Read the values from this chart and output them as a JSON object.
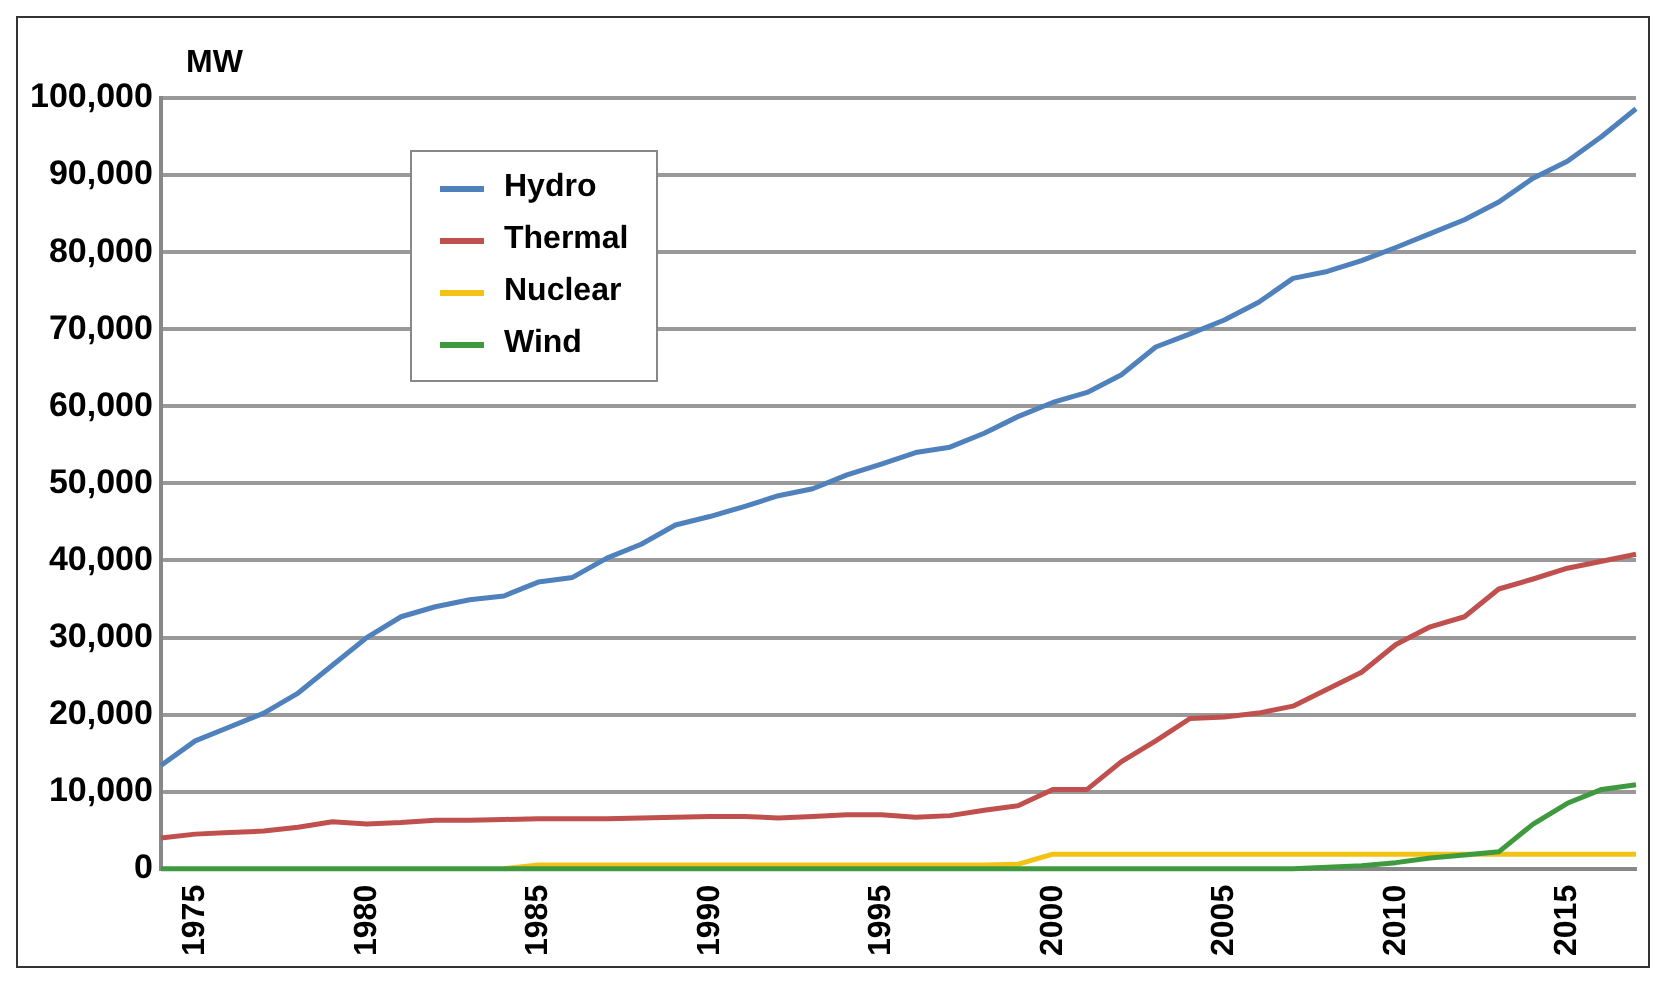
{
  "chart_data": {
    "type": "line",
    "ylabel": "MW",
    "x": [
      1974,
      1975,
      1976,
      1977,
      1978,
      1979,
      1980,
      1981,
      1982,
      1983,
      1984,
      1985,
      1986,
      1987,
      1988,
      1989,
      1990,
      1991,
      1992,
      1993,
      1994,
      1995,
      1996,
      1997,
      1998,
      1999,
      2000,
      2001,
      2002,
      2003,
      2004,
      2005,
      2006,
      2007,
      2008,
      2009,
      2010,
      2011,
      2012,
      2013,
      2014,
      2015,
      2016,
      2017
    ],
    "series": [
      {
        "name": "Hydro",
        "color": "#4f81bd",
        "values": [
          13400,
          16600,
          18400,
          20200,
          22800,
          26400,
          30000,
          32700,
          34000,
          34900,
          35400,
          37200,
          37800,
          40300,
          42100,
          44600,
          45700,
          47000,
          48400,
          49300,
          51100,
          52500,
          54000,
          54700,
          56500,
          58700,
          60500,
          61800,
          64100,
          67700,
          69400,
          71200,
          73500,
          76600,
          77500,
          78900,
          80600,
          82400,
          84200,
          86500,
          89600,
          91800,
          95000,
          98600
        ]
      },
      {
        "name": "Thermal",
        "color": "#c0504d",
        "values": [
          4000,
          4500,
          4700,
          4900,
          5400,
          6100,
          5800,
          6000,
          6300,
          6300,
          6400,
          6500,
          6500,
          6500,
          6600,
          6700,
          6800,
          6800,
          6600,
          6800,
          7000,
          7000,
          6700,
          6900,
          7600,
          8200,
          10300,
          10300,
          13900,
          16600,
          19500,
          19700,
          20200,
          21100,
          23300,
          25500,
          29100,
          31400,
          32700,
          36300,
          37600,
          39000,
          39900,
          40800
        ]
      },
      {
        "name": "Nuclear",
        "color": "#f2c314",
        "values": [
          null,
          null,
          null,
          null,
          null,
          null,
          null,
          null,
          null,
          null,
          0,
          500,
          500,
          500,
          500,
          500,
          500,
          500,
          500,
          500,
          500,
          500,
          500,
          500,
          500,
          600,
          1900,
          1900,
          1900,
          1900,
          1900,
          1900,
          1900,
          1900,
          1900,
          1900,
          1900,
          1900,
          1900,
          1900,
          1900,
          1900,
          1900,
          1900
        ]
      },
      {
        "name": "Wind",
        "color": "#3f9a3f",
        "values": [
          0,
          0,
          0,
          0,
          0,
          0,
          0,
          0,
          0,
          0,
          0,
          0,
          0,
          0,
          0,
          0,
          0,
          0,
          0,
          0,
          0,
          0,
          0,
          0,
          0,
          0,
          0,
          0,
          0,
          0,
          0,
          0,
          0,
          0,
          200,
          400,
          800,
          1400,
          1800,
          2200,
          5800,
          8500,
          10300,
          10900
        ]
      }
    ],
    "xlim": [
      1974,
      2017
    ],
    "xticks": [
      1975,
      1980,
      1985,
      1990,
      1995,
      2000,
      2005,
      2010,
      2015
    ],
    "ylim": [
      0,
      100000
    ],
    "yticks": [
      {
        "value": 0,
        "label": "0"
      },
      {
        "value": 10000,
        "label": "10,000"
      },
      {
        "value": 20000,
        "label": "20,000"
      },
      {
        "value": 30000,
        "label": "30,000"
      },
      {
        "value": 40000,
        "label": "40,000"
      },
      {
        "value": 50000,
        "label": "50,000"
      },
      {
        "value": 60000,
        "label": "60,000"
      },
      {
        "value": 70000,
        "label": "70,000"
      },
      {
        "value": 80000,
        "label": "80,000"
      },
      {
        "value": 90000,
        "label": "90,000"
      },
      {
        "value": 100000,
        "label": "100,000"
      }
    ],
    "grid": "y",
    "legend": "top left",
    "marker": "none",
    "line_style": "solid"
  }
}
